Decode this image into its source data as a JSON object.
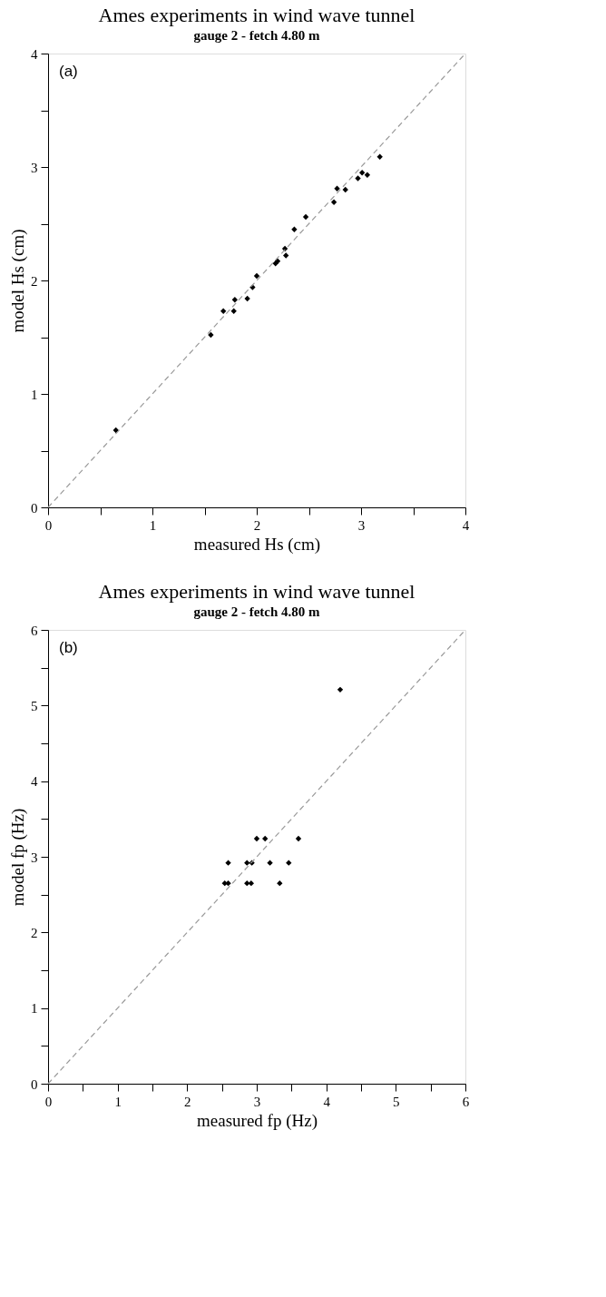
{
  "chart_data": [
    {
      "type": "scatter",
      "title": "Ames experiments in wind wave tunnel",
      "subtitle": "gauge 2 - fetch 4.80 m",
      "xlabel": "measured Hs (cm)",
      "ylabel": "model Hs (cm)",
      "annotations": [
        "(a)"
      ],
      "xlim": [
        0,
        4
      ],
      "ylim": [
        0,
        4
      ],
      "xticks": [
        0,
        {
          "value": 0.5,
          "label": null
        },
        1,
        {
          "value": 1.5,
          "label": null
        },
        2,
        {
          "value": 2.5,
          "label": null
        },
        3,
        {
          "value": 3.5,
          "label": null
        },
        4
      ],
      "yticks": [
        0,
        {
          "value": 0.5,
          "label": null
        },
        1,
        {
          "value": 1.5,
          "label": null
        },
        2,
        {
          "value": 2.5,
          "label": null
        },
        3,
        {
          "value": 3.5,
          "label": null
        },
        4
      ],
      "grid": false,
      "series": [
        {
          "color": "#000000",
          "marker": "diamond",
          "x": [
            0.65,
            1.56,
            1.68,
            1.78,
            1.79,
            1.91,
            1.96,
            2.0,
            2.18,
            2.2,
            2.28,
            2.27,
            2.36,
            2.47,
            2.74,
            2.77,
            2.85,
            2.97,
            3.01,
            3.06,
            3.18
          ],
          "values": [
            0.68,
            1.52,
            1.73,
            1.73,
            1.83,
            1.84,
            1.94,
            2.04,
            2.15,
            2.17,
            2.22,
            2.28,
            2.45,
            2.56,
            2.69,
            2.81,
            2.8,
            2.9,
            2.95,
            2.93,
            3.09
          ]
        },
        {
          "type": "line",
          "marker": "none",
          "color": "#999999",
          "line_style": "dashed",
          "x": [
            0,
            4
          ],
          "values": [
            0,
            4
          ]
        }
      ]
    },
    {
      "type": "scatter",
      "title": "Ames experiments in wind wave tunnel",
      "subtitle": "gauge 2 - fetch 4.80 m",
      "xlabel": "measured fp (Hz)",
      "ylabel": "model fp (Hz)",
      "annotations": [
        "(b)"
      ],
      "xlim": [
        0,
        6
      ],
      "ylim": [
        0,
        6
      ],
      "xticks": [
        0,
        {
          "value": 0.5,
          "label": null
        },
        1,
        {
          "value": 1.5,
          "label": null
        },
        2,
        {
          "value": 2.5,
          "label": null
        },
        3,
        {
          "value": 3.5,
          "label": null
        },
        4,
        {
          "value": 4.5,
          "label": null
        },
        5,
        {
          "value": 5.5,
          "label": null
        },
        6
      ],
      "yticks": [
        0,
        {
          "value": 0.5,
          "label": null
        },
        1,
        {
          "value": 1.5,
          "label": null
        },
        2,
        {
          "value": 2.5,
          "label": null
        },
        3,
        {
          "value": 3.5,
          "label": null
        },
        4,
        {
          "value": 4.5,
          "label": null
        },
        5,
        {
          "value": 5.5,
          "label": null
        },
        6
      ],
      "grid": false,
      "series": [
        {
          "color": "#000000",
          "marker": "diamond",
          "x": [
            2.54,
            2.59,
            2.86,
            2.92,
            3.33,
            2.59,
            2.86,
            2.93,
            3.19,
            3.46,
            3.0,
            3.12,
            3.6,
            4.2
          ],
          "values": [
            2.65,
            2.65,
            2.65,
            2.65,
            2.65,
            2.92,
            2.92,
            2.92,
            2.92,
            2.92,
            3.24,
            3.24,
            3.24,
            5.21
          ]
        },
        {
          "type": "line",
          "marker": "none",
          "color": "#999999",
          "line_style": "dashed",
          "x": [
            0,
            6
          ],
          "values": [
            0,
            6
          ]
        }
      ]
    }
  ]
}
